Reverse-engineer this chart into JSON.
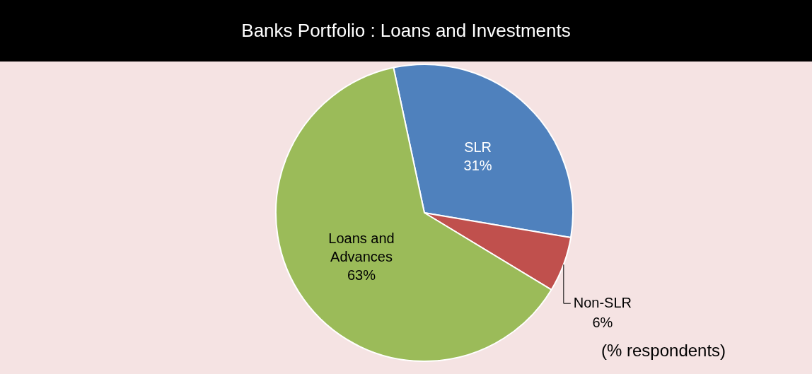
{
  "chart_data": {
    "type": "pie",
    "title": "Banks Portfolio : Loans and Investments",
    "categories": [
      "SLR",
      "Non-SLR",
      "Loans and Advances"
    ],
    "values": [
      31,
      6,
      63
    ],
    "colors": [
      "#4f81bd",
      "#c0504d",
      "#9bbb59"
    ],
    "value_labels": [
      "31%",
      "6%",
      "63%"
    ],
    "annotations": [
      "(% respondents)"
    ]
  }
}
